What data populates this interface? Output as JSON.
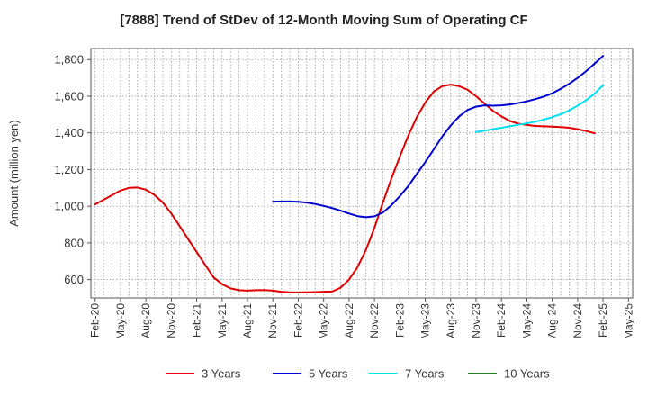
{
  "chart_data": {
    "type": "line",
    "title": "[7888]  Trend of StDev of 12-Month Moving Sum of Operating CF",
    "ylabel": "Amount (million yen)",
    "xlabel": "",
    "ylim": [
      500,
      1860
    ],
    "yticks": [
      600,
      800,
      1000,
      1200,
      1400,
      1600,
      1800
    ],
    "ytick_labels": [
      "600",
      "800",
      "1,000",
      "1,200",
      "1,400",
      "1,600",
      "1,800"
    ],
    "x_months": [
      "2020-02",
      "2020-03",
      "2020-04",
      "2020-05",
      "2020-06",
      "2020-07",
      "2020-08",
      "2020-09",
      "2020-10",
      "2020-11",
      "2020-12",
      "2021-01",
      "2021-02",
      "2021-03",
      "2021-04",
      "2021-05",
      "2021-06",
      "2021-07",
      "2021-08",
      "2021-09",
      "2021-10",
      "2021-11",
      "2021-12",
      "2022-01",
      "2022-02",
      "2022-03",
      "2022-04",
      "2022-05",
      "2022-06",
      "2022-07",
      "2022-08",
      "2022-09",
      "2022-10",
      "2022-11",
      "2022-12",
      "2023-01",
      "2023-02",
      "2023-03",
      "2023-04",
      "2023-05",
      "2023-06",
      "2023-07",
      "2023-08",
      "2023-09",
      "2023-10",
      "2023-11",
      "2023-12",
      "2024-01",
      "2024-02",
      "2024-03",
      "2024-04",
      "2024-05",
      "2024-06",
      "2024-07",
      "2024-08",
      "2024-09",
      "2024-10",
      "2024-11",
      "2024-12",
      "2025-01",
      "2025-02",
      "2025-03",
      "2025-04",
      "2025-05"
    ],
    "xtick_labels": [
      "Feb-20",
      "May-20",
      "Aug-20",
      "Nov-20",
      "Feb-21",
      "May-21",
      "Aug-21",
      "Nov-21",
      "Feb-22",
      "May-22",
      "Aug-22",
      "Nov-22",
      "Feb-23",
      "May-23",
      "Aug-23",
      "Nov-23",
      "Feb-24",
      "May-24",
      "Aug-24",
      "Nov-24",
      "Feb-25",
      "May-25"
    ],
    "grid": true,
    "legend_position": "bottom",
    "series": [
      {
        "name": "3 Years",
        "color": "#e00000",
        "values": [
          1010,
          1035,
          1060,
          1085,
          1100,
          1102,
          1090,
          1062,
          1020,
          960,
          890,
          820,
          750,
          680,
          612,
          575,
          552,
          542,
          540,
          542,
          543,
          540,
          534,
          531,
          530,
          531,
          532,
          534,
          535,
          556,
          600,
          668,
          762,
          882,
          1020,
          1150,
          1270,
          1385,
          1485,
          1565,
          1625,
          1655,
          1663,
          1655,
          1635,
          1600,
          1560,
          1520,
          1490,
          1465,
          1450,
          1443,
          1438,
          1436,
          1434,
          1432,
          1428,
          1420,
          1410,
          1398,
          null,
          null,
          null,
          null
        ]
      },
      {
        "name": "5 Years",
        "color": "#0000d0",
        "values": [
          null,
          null,
          null,
          null,
          null,
          null,
          null,
          null,
          null,
          null,
          null,
          null,
          null,
          null,
          null,
          null,
          null,
          null,
          null,
          null,
          null,
          1025,
          1026,
          1026,
          1024,
          1020,
          1012,
          1002,
          990,
          976,
          960,
          946,
          940,
          945,
          966,
          1005,
          1055,
          1110,
          1175,
          1240,
          1310,
          1380,
          1440,
          1490,
          1525,
          1543,
          1550,
          1548,
          1550,
          1555,
          1563,
          1572,
          1584,
          1598,
          1616,
          1640,
          1668,
          1700,
          1737,
          1778,
          1820,
          null,
          null,
          null
        ]
      },
      {
        "name": "7 Years",
        "color": "#00e0f0",
        "values": [
          null,
          null,
          null,
          null,
          null,
          null,
          null,
          null,
          null,
          null,
          null,
          null,
          null,
          null,
          null,
          null,
          null,
          null,
          null,
          null,
          null,
          null,
          null,
          null,
          null,
          null,
          null,
          null,
          null,
          null,
          null,
          null,
          null,
          null,
          null,
          null,
          null,
          null,
          null,
          null,
          null,
          null,
          null,
          null,
          null,
          1405,
          1412,
          1420,
          1428,
          1436,
          1444,
          1452,
          1461,
          1472,
          1486,
          1502,
          1522,
          1548,
          1578,
          1614,
          1660,
          null,
          null,
          null
        ]
      },
      {
        "name": "10 Years",
        "color": "#1a8a1a",
        "values": []
      }
    ]
  }
}
